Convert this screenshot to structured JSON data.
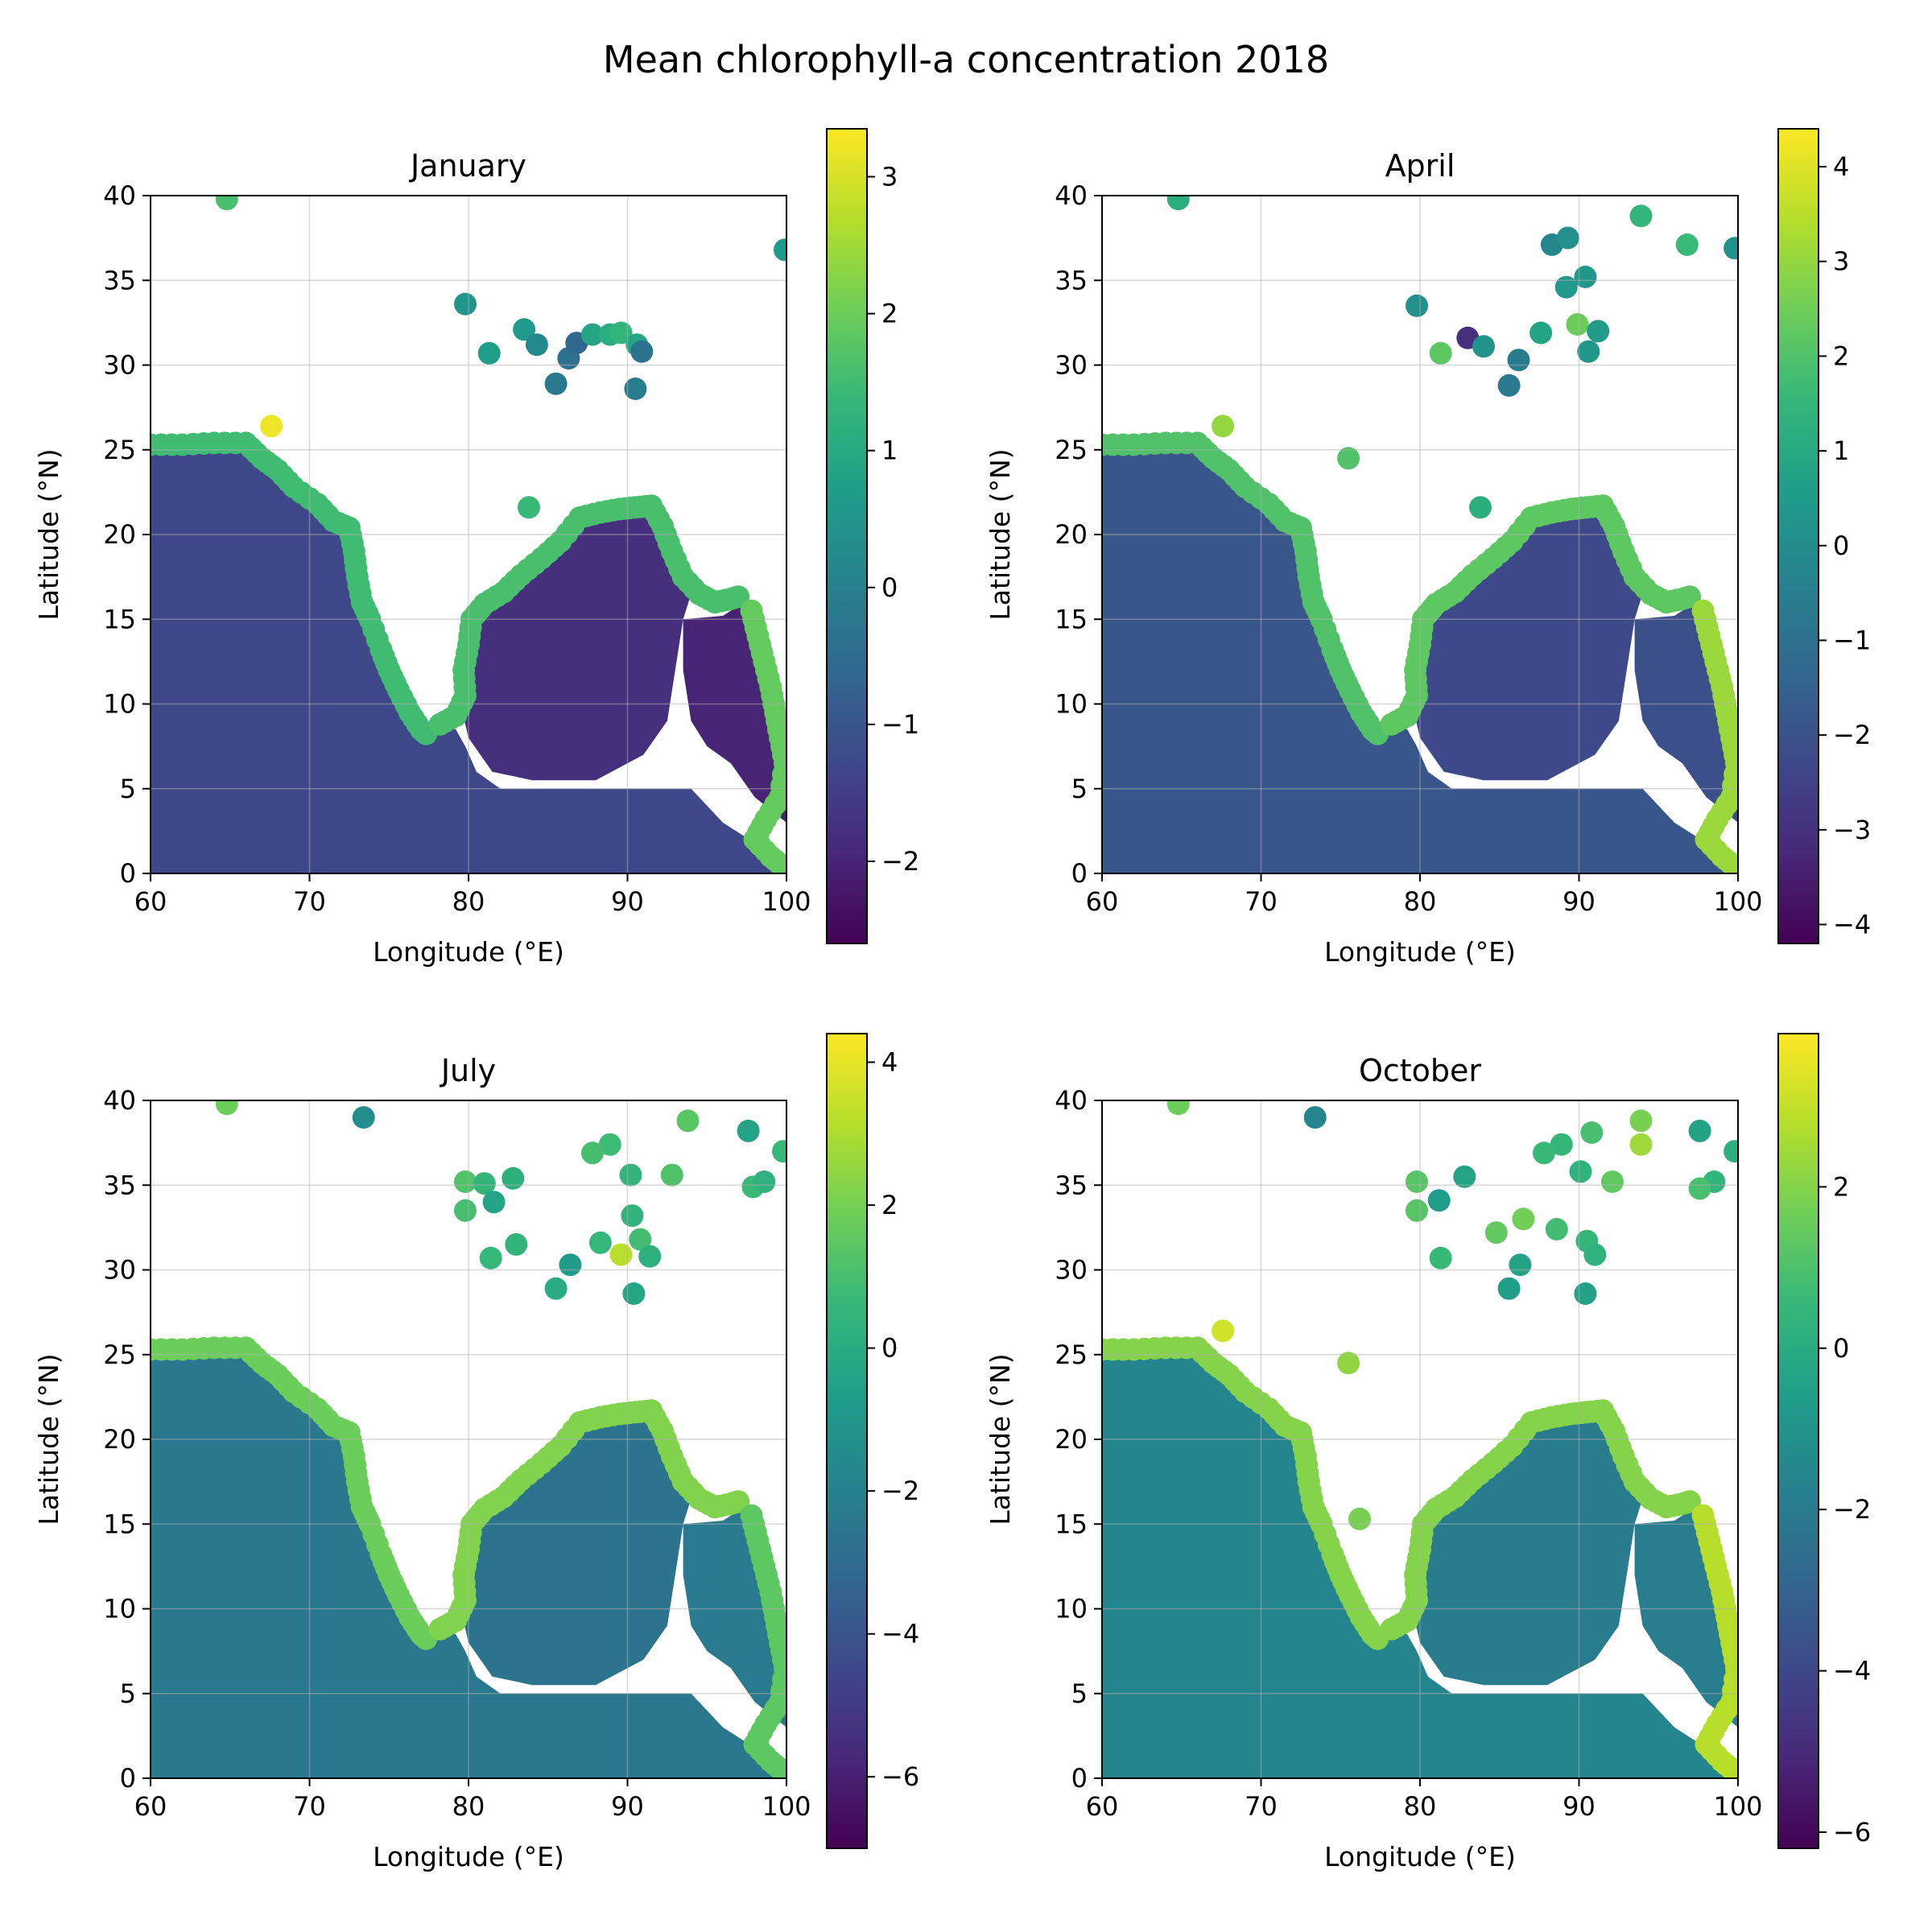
{
  "figure": {
    "title": "Mean chlorophyll-a concentration 2018"
  },
  "colormap": "viridis",
  "chart_data": [
    {
      "type": "scatter",
      "title": "January",
      "xlabel": "Longitude (°E)",
      "ylabel": "Latitude (°N)",
      "xlim": [
        60,
        100
      ],
      "ylim": [
        0,
        40
      ],
      "xticks": [
        60,
        70,
        80,
        90,
        100
      ],
      "yticks": [
        0,
        5,
        10,
        15,
        20,
        25,
        30,
        35,
        40
      ],
      "grid": true,
      "colorbar": {
        "range": [
          -2.6,
          3.35
        ],
        "ticks": [
          -2,
          -1,
          0,
          1,
          2,
          3
        ]
      },
      "offshore_points": [
        {
          "lon": 64.8,
          "lat": 39.8,
          "value": 1.6
        },
        {
          "lon": 99.9,
          "lat": 36.8,
          "value": 0.6
        },
        {
          "lon": 79.8,
          "lat": 33.6,
          "value": 0.5
        },
        {
          "lon": 81.3,
          "lat": 30.7,
          "value": 0.7
        },
        {
          "lon": 83.5,
          "lat": 32.1,
          "value": 0.6
        },
        {
          "lon": 84.3,
          "lat": 31.2,
          "value": 0.2
        },
        {
          "lon": 85.5,
          "lat": 28.9,
          "value": -0.2
        },
        {
          "lon": 86.3,
          "lat": 30.4,
          "value": -0.4
        },
        {
          "lon": 86.8,
          "lat": 31.3,
          "value": -0.6
        },
        {
          "lon": 87.8,
          "lat": 31.8,
          "value": 0.9
        },
        {
          "lon": 88.9,
          "lat": 31.8,
          "value": 1.1
        },
        {
          "lon": 89.6,
          "lat": 31.9,
          "value": 1.3
        },
        {
          "lon": 90.5,
          "lat": 28.6,
          "value": -0.1
        },
        {
          "lon": 90.6,
          "lat": 31.2,
          "value": 0.9
        },
        {
          "lon": 90.9,
          "lat": 30.8,
          "value": -0.3
        },
        {
          "lon": 67.6,
          "lat": 26.4,
          "value": 3.2
        },
        {
          "lon": 83.8,
          "lat": 21.6,
          "value": 1.4
        }
      ],
      "coastal_values": {
        "arabian": 1.5,
        "bengal_north": 1.6,
        "myanmar": 1.9
      },
      "ocean_values": {
        "arabian": -1.3,
        "bengal": -1.8,
        "andaman": -2.0
      }
    },
    {
      "type": "scatter",
      "title": "April",
      "xlabel": "Longitude (°E)",
      "ylabel": "Latitude (°N)",
      "xlim": [
        60,
        100
      ],
      "ylim": [
        0,
        40
      ],
      "xticks": [
        60,
        70,
        80,
        90,
        100
      ],
      "yticks": [
        0,
        5,
        10,
        15,
        20,
        25,
        30,
        35,
        40
      ],
      "grid": true,
      "colorbar": {
        "range": [
          -4.2,
          4.4
        ],
        "ticks": [
          -4,
          -3,
          -2,
          -1,
          0,
          1,
          2,
          3,
          4
        ]
      },
      "offshore_points": [
        {
          "lon": 64.8,
          "lat": 39.8,
          "value": 1.2
        },
        {
          "lon": 93.9,
          "lat": 38.8,
          "value": 1.5
        },
        {
          "lon": 96.8,
          "lat": 37.1,
          "value": 1.6
        },
        {
          "lon": 99.8,
          "lat": 36.9,
          "value": 0.2
        },
        {
          "lon": 88.3,
          "lat": 37.1,
          "value": -0.2
        },
        {
          "lon": 89.3,
          "lat": 37.5,
          "value": 0.1
        },
        {
          "lon": 90.4,
          "lat": 35.2,
          "value": 0.3
        },
        {
          "lon": 89.2,
          "lat": 34.6,
          "value": 0.4
        },
        {
          "lon": 79.8,
          "lat": 33.5,
          "value": 0.1
        },
        {
          "lon": 83.0,
          "lat": 31.6,
          "value": -3.0
        },
        {
          "lon": 81.3,
          "lat": 30.7,
          "value": 2.2
        },
        {
          "lon": 84.0,
          "lat": 31.1,
          "value": 0.2
        },
        {
          "lon": 86.2,
          "lat": 30.3,
          "value": -0.6
        },
        {
          "lon": 85.6,
          "lat": 28.8,
          "value": -0.7
        },
        {
          "lon": 87.6,
          "lat": 31.9,
          "value": 0.8
        },
        {
          "lon": 89.9,
          "lat": 32.4,
          "value": 2.4
        },
        {
          "lon": 90.6,
          "lat": 30.8,
          "value": 0.3
        },
        {
          "lon": 91.2,
          "lat": 32.0,
          "value": 0.5
        },
        {
          "lon": 67.6,
          "lat": 26.4,
          "value": 3.0
        },
        {
          "lon": 75.5,
          "lat": 24.5,
          "value": 2.0
        },
        {
          "lon": 83.8,
          "lat": 21.6,
          "value": 1.2
        }
      ],
      "coastal_values": {
        "arabian": 2.0,
        "bengal_north": 2.2,
        "myanmar": 3.1
      },
      "ocean_values": {
        "arabian": -1.9,
        "bengal": -2.3,
        "andaman": -2.1
      }
    },
    {
      "type": "scatter",
      "title": "July",
      "xlabel": "Longitude (°E)",
      "ylabel": "Latitude (°N)",
      "xlim": [
        60,
        100
      ],
      "ylim": [
        0,
        40
      ],
      "xticks": [
        60,
        70,
        80,
        90,
        100
      ],
      "yticks": [
        0,
        5,
        10,
        15,
        20,
        25,
        30,
        35,
        40
      ],
      "grid": true,
      "colorbar": {
        "range": [
          -7.0,
          4.4
        ],
        "ticks": [
          -6,
          -4,
          -2,
          0,
          2,
          4
        ]
      },
      "offshore_points": [
        {
          "lon": 64.8,
          "lat": 39.8,
          "value": 1.8
        },
        {
          "lon": 73.4,
          "lat": 39.0,
          "value": -1.4
        },
        {
          "lon": 93.8,
          "lat": 38.8,
          "value": 1.4
        },
        {
          "lon": 97.6,
          "lat": 38.2,
          "value": -0.4
        },
        {
          "lon": 99.8,
          "lat": 37.0,
          "value": 0.6
        },
        {
          "lon": 88.9,
          "lat": 37.4,
          "value": 0.8
        },
        {
          "lon": 87.8,
          "lat": 36.9,
          "value": 1.0
        },
        {
          "lon": 90.2,
          "lat": 35.6,
          "value": 0.5
        },
        {
          "lon": 92.8,
          "lat": 35.6,
          "value": 1.2
        },
        {
          "lon": 97.9,
          "lat": 34.9,
          "value": 0.7
        },
        {
          "lon": 98.6,
          "lat": 35.2,
          "value": 0.3
        },
        {
          "lon": 79.8,
          "lat": 35.2,
          "value": 1.2
        },
        {
          "lon": 81.0,
          "lat": 35.1,
          "value": 0.5
        },
        {
          "lon": 81.6,
          "lat": 34.0,
          "value": -0.4
        },
        {
          "lon": 82.8,
          "lat": 35.4,
          "value": 0.2
        },
        {
          "lon": 79.8,
          "lat": 33.5,
          "value": 1.0
        },
        {
          "lon": 81.4,
          "lat": 30.7,
          "value": 0.6
        },
        {
          "lon": 83.0,
          "lat": 31.5,
          "value": 0.4
        },
        {
          "lon": 85.5,
          "lat": 28.9,
          "value": 0.0
        },
        {
          "lon": 86.4,
          "lat": 30.3,
          "value": -0.8
        },
        {
          "lon": 88.3,
          "lat": 31.6,
          "value": 0.6
        },
        {
          "lon": 89.6,
          "lat": 30.9,
          "value": 3.2
        },
        {
          "lon": 90.3,
          "lat": 33.2,
          "value": 0.4
        },
        {
          "lon": 90.8,
          "lat": 31.8,
          "value": 0.9
        },
        {
          "lon": 90.4,
          "lat": 28.6,
          "value": -0.3
        },
        {
          "lon": 91.4,
          "lat": 30.8,
          "value": 0.2
        }
      ],
      "coastal_values": {
        "arabian": 1.8,
        "bengal_north": 2.2,
        "myanmar": 1.5
      },
      "ocean_values": {
        "arabian": -2.4,
        "bengal": -2.6,
        "andaman": -2.3
      }
    },
    {
      "type": "scatter",
      "title": "October",
      "xlabel": "Longitude (°E)",
      "ylabel": "Latitude (°N)",
      "xlim": [
        60,
        100
      ],
      "ylim": [
        0,
        40
      ],
      "xticks": [
        60,
        70,
        80,
        90,
        100
      ],
      "yticks": [
        0,
        5,
        10,
        15,
        20,
        25,
        30,
        35,
        40
      ],
      "grid": true,
      "colorbar": {
        "range": [
          -6.2,
          3.9
        ],
        "ticks": [
          -6,
          -4,
          -2,
          0,
          2
        ]
      },
      "offshore_points": [
        {
          "lon": 64.8,
          "lat": 39.8,
          "value": 1.6
        },
        {
          "lon": 73.4,
          "lat": 39.0,
          "value": -1.6
        },
        {
          "lon": 93.9,
          "lat": 38.8,
          "value": 1.8
        },
        {
          "lon": 97.6,
          "lat": 38.2,
          "value": -0.4
        },
        {
          "lon": 99.8,
          "lat": 37.0,
          "value": 0.2
        },
        {
          "lon": 93.9,
          "lat": 37.4,
          "value": 2.4
        },
        {
          "lon": 88.9,
          "lat": 37.4,
          "value": 0.5
        },
        {
          "lon": 90.8,
          "lat": 38.1,
          "value": 0.9
        },
        {
          "lon": 87.8,
          "lat": 36.9,
          "value": 0.6
        },
        {
          "lon": 90.1,
          "lat": 35.8,
          "value": 0.3
        },
        {
          "lon": 92.1,
          "lat": 35.2,
          "value": 1.4
        },
        {
          "lon": 98.5,
          "lat": 35.2,
          "value": 0.4
        },
        {
          "lon": 97.6,
          "lat": 34.8,
          "value": 0.9
        },
        {
          "lon": 79.8,
          "lat": 35.2,
          "value": 1.2
        },
        {
          "lon": 81.2,
          "lat": 34.1,
          "value": -0.6
        },
        {
          "lon": 82.8,
          "lat": 35.5,
          "value": -0.3
        },
        {
          "lon": 79.8,
          "lat": 33.5,
          "value": 1.2
        },
        {
          "lon": 81.3,
          "lat": 30.7,
          "value": 0.6
        },
        {
          "lon": 84.8,
          "lat": 32.2,
          "value": 1.4
        },
        {
          "lon": 86.5,
          "lat": 33.0,
          "value": 1.7
        },
        {
          "lon": 85.6,
          "lat": 28.9,
          "value": -0.6
        },
        {
          "lon": 86.3,
          "lat": 30.3,
          "value": -0.4
        },
        {
          "lon": 88.6,
          "lat": 32.4,
          "value": 0.8
        },
        {
          "lon": 90.5,
          "lat": 31.7,
          "value": 0.5
        },
        {
          "lon": 90.4,
          "lat": 28.6,
          "value": -0.4
        },
        {
          "lon": 91.0,
          "lat": 30.9,
          "value": 0.3
        },
        {
          "lon": 67.6,
          "lat": 26.4,
          "value": 3.2
        },
        {
          "lon": 75.5,
          "lat": 24.5,
          "value": 2.2
        },
        {
          "lon": 76.2,
          "lat": 15.3,
          "value": 1.8
        }
      ],
      "coastal_values": {
        "arabian": 2.0,
        "bengal_north": 2.0,
        "myanmar": 2.8
      },
      "ocean_values": {
        "arabian": -1.6,
        "bengal": -2.0,
        "andaman": -1.9
      }
    }
  ]
}
